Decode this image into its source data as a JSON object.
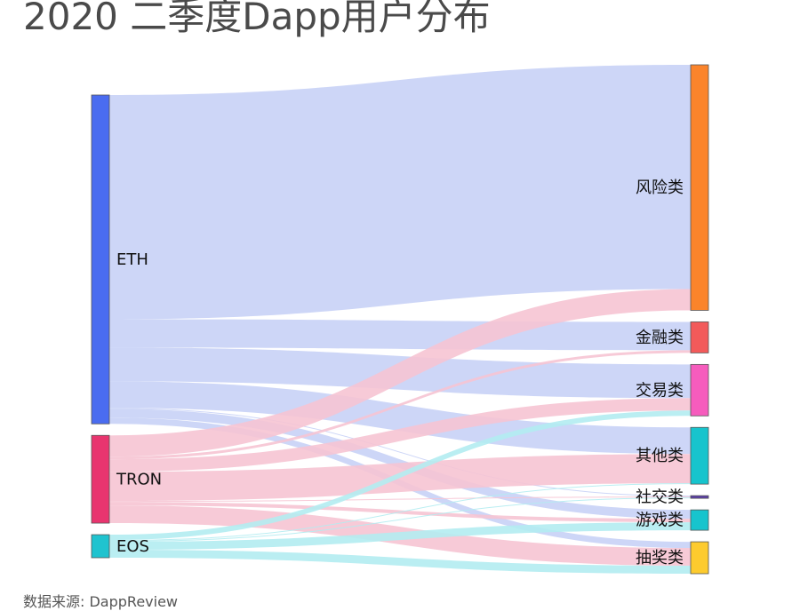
{
  "title": "2020 二季度Dapp用户分布",
  "source": "数据来源: DappReview",
  "chart_data": {
    "type": "sankey",
    "title": "2020 二季度Dapp用户分布",
    "sources": [
      {
        "name": "ETH",
        "color": "#4a6cf0"
      },
      {
        "name": "TRON",
        "color": "#e8356f"
      },
      {
        "name": "EOS",
        "color": "#1fc3cf"
      }
    ],
    "targets": [
      {
        "name": "风险类",
        "color": "#fb842b"
      },
      {
        "name": "金融类",
        "color": "#f25a5a"
      },
      {
        "name": "交易类",
        "color": "#f65cbd"
      },
      {
        "name": "其他类",
        "color": "#17c4cd"
      },
      {
        "name": "社交类",
        "color": "#5b3fa8"
      },
      {
        "name": "游戏类",
        "color": "#17c4cd"
      },
      {
        "name": "抽奖类",
        "color": "#fdcb2e"
      }
    ],
    "link_colors": {
      "ETH": "#c8d2f6",
      "TRON": "#f6c4d3",
      "EOS": "#b3ecf1"
    },
    "links": [
      {
        "source": "ETH",
        "target": "风险类",
        "value": 253
      },
      {
        "source": "ETH",
        "target": "金融类",
        "value": 32
      },
      {
        "source": "ETH",
        "target": "交易类",
        "value": 38
      },
      {
        "source": "ETH",
        "target": "其他类",
        "value": 30
      },
      {
        "source": "ETH",
        "target": "社交类",
        "value": 1
      },
      {
        "source": "ETH",
        "target": "游戏类",
        "value": 10
      },
      {
        "source": "ETH",
        "target": "抽奖类",
        "value": 7
      },
      {
        "source": "TRON",
        "target": "风险类",
        "value": 24
      },
      {
        "source": "TRON",
        "target": "金融类",
        "value": 3
      },
      {
        "source": "TRON",
        "target": "交易类",
        "value": 14
      },
      {
        "source": "TRON",
        "target": "其他类",
        "value": 33
      },
      {
        "source": "TRON",
        "target": "社交类",
        "value": 1
      },
      {
        "source": "TRON",
        "target": "游戏类",
        "value": 4
      },
      {
        "source": "TRON",
        "target": "抽奖类",
        "value": 20
      },
      {
        "source": "EOS",
        "target": "交易类",
        "value": 6
      },
      {
        "source": "EOS",
        "target": "其他类",
        "value": 1
      },
      {
        "source": "EOS",
        "target": "社交类",
        "value": 1
      },
      {
        "source": "EOS",
        "target": "游戏类",
        "value": 9
      },
      {
        "source": "EOS",
        "target": "抽奖类",
        "value": 9
      }
    ]
  }
}
